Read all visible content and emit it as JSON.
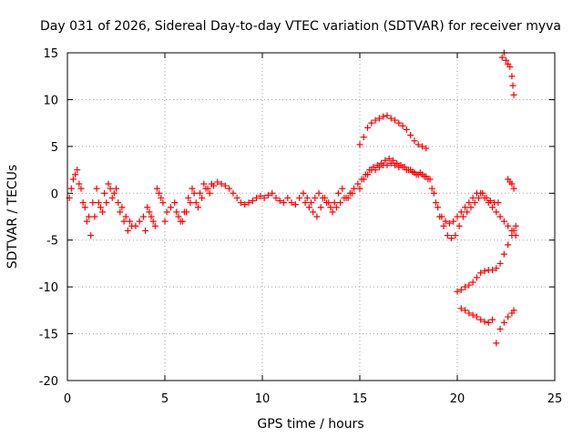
{
  "chart_data": {
    "type": "scatter",
    "title": "Day 031 of 2026, Sidereal Day-to-day VTEC variation (SDTVAR) for receiver myva",
    "xlabel": "GPS time / hours",
    "ylabel": "SDTVAR / TECUs",
    "xlim": [
      0,
      25
    ],
    "ylim": [
      -20,
      15
    ],
    "xticks": [
      0,
      5,
      10,
      15,
      20,
      25
    ],
    "yticks": [
      -20,
      -15,
      -10,
      -5,
      0,
      5,
      10,
      15
    ],
    "xtick_labels": [
      "0",
      "5",
      "10",
      "15",
      "20",
      "25"
    ],
    "ytick_labels": [
      "-20",
      "-15",
      "-10",
      "-5",
      "0",
      "5",
      "10",
      "15"
    ],
    "grid": true,
    "marker": "plus",
    "color": "#ff0000",
    "series": [
      {
        "name": "arc-main-1",
        "x": [
          0.1,
          0.3,
          0.5,
          0.7,
          0.9,
          1.1,
          1.3,
          1.5,
          1.7,
          1.9,
          2.1,
          2.3,
          2.5,
          2.7,
          2.9,
          3.1,
          3.3,
          3.5,
          3.7,
          3.9,
          4.1,
          4.3,
          4.5,
          4.7,
          4.9,
          5.1,
          5.3,
          5.5,
          5.7,
          5.9,
          6.1,
          6.3,
          6.5,
          6.7,
          6.9,
          7.1,
          7.3,
          7.5,
          7.7,
          7.9,
          8.1,
          8.3,
          8.5,
          8.7,
          8.9,
          9.1,
          9.3,
          9.5,
          9.7,
          9.9,
          10.1,
          10.3,
          10.5,
          10.7,
          10.9,
          11.1,
          11.3,
          11.5,
          11.7,
          11.9,
          12.1,
          12.3,
          12.5,
          12.7,
          12.9,
          13.1,
          13.3,
          13.5,
          13.7,
          13.9,
          14.1,
          14.3,
          14.5,
          14.7,
          14.9,
          15.1,
          15.3,
          15.5,
          15.7,
          15.9,
          16.1,
          16.3,
          16.5,
          16.7,
          16.9,
          17.1,
          17.3,
          17.5,
          17.7,
          17.9,
          18.1,
          18.3,
          18.5,
          18.7,
          18.9,
          19.1,
          19.3,
          19.5,
          19.7,
          19.9,
          20.1,
          20.3,
          20.5,
          20.7,
          20.9,
          21.1,
          21.3,
          21.5,
          21.7,
          21.9,
          22.1
        ],
        "y": [
          -0.5,
          1.5,
          2.5,
          0.5,
          -1.5,
          -2.5,
          -1.0,
          0.5,
          -1.5,
          0.0,
          1.0,
          -0.5,
          0.5,
          -2.0,
          -3.0,
          -4.0,
          -3.5,
          -3.5,
          -3.0,
          -2.5,
          -1.5,
          -2.5,
          -3.5,
          0.0,
          -1.0,
          -2.0,
          -1.5,
          -1.0,
          -2.5,
          -3.0,
          -2.0,
          -1.0,
          0.0,
          -1.5,
          -0.5,
          0.5,
          0.0,
          0.8,
          1.2,
          1.0,
          0.8,
          0.5,
          0.0,
          -0.5,
          -1.0,
          -1.2,
          -1.0,
          -0.8,
          -0.5,
          -0.3,
          -0.5,
          -0.2,
          0.0,
          -0.5,
          -0.8,
          -1.0,
          -0.5,
          -1.0,
          -1.2,
          -0.5,
          0.0,
          -0.5,
          -1.0,
          -0.5,
          0.0,
          -0.5,
          -1.0,
          -1.5,
          -1.0,
          0.0,
          0.5,
          -0.5,
          0.0,
          0.5,
          1.0,
          1.5,
          2.0,
          2.5,
          2.8,
          3.0,
          3.2,
          3.5,
          3.7,
          3.5,
          3.2,
          3.0,
          2.8,
          2.5,
          2.3,
          2.0,
          2.2,
          1.8,
          1.5,
          0.5,
          -1.0,
          -2.5,
          -3.5,
          -4.5,
          -4.8,
          -4.5,
          -3.5,
          -2.5,
          -2.0,
          -1.5,
          -1.0,
          -0.5,
          0.0,
          -0.5,
          -0.8,
          -1.0,
          -1.0
        ]
      },
      {
        "name": "arc-main-2",
        "x": [
          0.2,
          0.4,
          0.6,
          0.8,
          1.0,
          1.2,
          1.4,
          1.6,
          1.8,
          2.0,
          2.2,
          2.4,
          2.6,
          2.8,
          3.0,
          3.2,
          4.0,
          4.2,
          4.4,
          4.6,
          4.8,
          5.0,
          5.6,
          5.8,
          6.0,
          6.2,
          6.4,
          6.6,
          6.8,
          7.0,
          7.2,
          7.4,
          12.2,
          12.4,
          12.6,
          12.8,
          13.0,
          13.2,
          13.4,
          13.6,
          13.8,
          14.0,
          14.2,
          14.4,
          14.6,
          15.0,
          15.2,
          15.4,
          15.6,
          15.8,
          16.0,
          16.2,
          16.4,
          16.6,
          16.8,
          17.0,
          17.2,
          17.4,
          17.6,
          17.8,
          18.0,
          18.2,
          18.4,
          18.6,
          18.8,
          19.0,
          19.2,
          19.4,
          19.6,
          19.8,
          20.0,
          20.2,
          20.4,
          20.6,
          20.8,
          21.0,
          21.2,
          21.4,
          21.6,
          21.8,
          22.0,
          22.2,
          22.4,
          22.6,
          22.8,
          23.0
        ],
        "y": [
          0.5,
          2.0,
          1.0,
          -1.0,
          -3.0,
          -4.5,
          -2.5,
          -1.0,
          -2.0,
          -1.0,
          0.5,
          0.0,
          -1.0,
          -1.5,
          -2.5,
          -3.0,
          -4.0,
          -2.0,
          -3.0,
          0.5,
          -0.5,
          -3.0,
          -2.0,
          -3.0,
          -2.0,
          -0.5,
          0.5,
          -1.0,
          0.0,
          1.0,
          0.5,
          1.0,
          -1.0,
          -1.5,
          -2.0,
          -2.5,
          -1.5,
          -0.5,
          -1.0,
          -2.0,
          -1.5,
          -1.0,
          -0.5,
          -0.5,
          0.0,
          0.5,
          1.5,
          2.0,
          2.5,
          2.5,
          2.8,
          3.0,
          3.0,
          3.2,
          3.0,
          2.8,
          2.8,
          2.5,
          2.5,
          2.2,
          2.0,
          2.0,
          1.8,
          1.5,
          0.0,
          -1.5,
          -2.5,
          -3.0,
          -3.2,
          -3.0,
          -2.5,
          -2.0,
          -1.5,
          -1.0,
          -0.5,
          0.0,
          0.0,
          -0.5,
          -1.0,
          -1.5,
          -2.0,
          -2.5,
          -3.0,
          -3.5,
          -4.0,
          -4.5
        ]
      },
      {
        "name": "arc-high-15-18",
        "x": [
          15.0,
          15.2,
          15.4,
          15.6,
          15.8,
          16.0,
          16.2,
          16.4,
          16.6,
          16.8,
          17.0,
          17.2,
          17.4,
          17.6,
          17.8,
          18.0,
          18.2,
          18.4
        ],
        "y": [
          5.2,
          6.0,
          7.0,
          7.5,
          7.8,
          8.0,
          8.2,
          8.3,
          8.0,
          7.8,
          7.5,
          7.2,
          6.8,
          6.2,
          5.6,
          5.2,
          5.0,
          4.8
        ]
      },
      {
        "name": "arc-top-right",
        "x": [
          22.3,
          22.4,
          22.5,
          22.6,
          22.7,
          22.8,
          22.85,
          22.9
        ],
        "y": [
          14.5,
          15.0,
          14.2,
          13.8,
          13.5,
          12.5,
          11.5,
          10.5
        ]
      },
      {
        "name": "arc-descend-right",
        "x": [
          20.0,
          20.2,
          20.4,
          20.6,
          20.8,
          21.0,
          21.2,
          21.4,
          21.6,
          21.8,
          22.0,
          22.2,
          22.4,
          22.6,
          22.8,
          22.9,
          23.0
        ],
        "y": [
          -10.5,
          -10.3,
          -10.0,
          -9.8,
          -9.5,
          -9.0,
          -8.5,
          -8.3,
          -8.2,
          -8.2,
          -8.0,
          -7.5,
          -6.5,
          -5.5,
          -4.5,
          -4.0,
          -3.5
        ]
      },
      {
        "name": "arc-low-right",
        "x": [
          20.2,
          20.4,
          20.6,
          20.8,
          21.0,
          21.2,
          21.4,
          21.6,
          21.8,
          22.0,
          22.2,
          22.4,
          22.6,
          22.8,
          22.9
        ],
        "y": [
          -12.3,
          -12.5,
          -12.8,
          -13.0,
          -13.2,
          -13.5,
          -13.7,
          -13.8,
          -13.5,
          -16.0,
          -14.5,
          -13.8,
          -13.2,
          -12.8,
          -12.5
        ]
      },
      {
        "name": "arc-small-right",
        "x": [
          22.6,
          22.7,
          22.8,
          22.9
        ],
        "y": [
          1.5,
          1.2,
          1.0,
          0.5
        ]
      }
    ]
  }
}
